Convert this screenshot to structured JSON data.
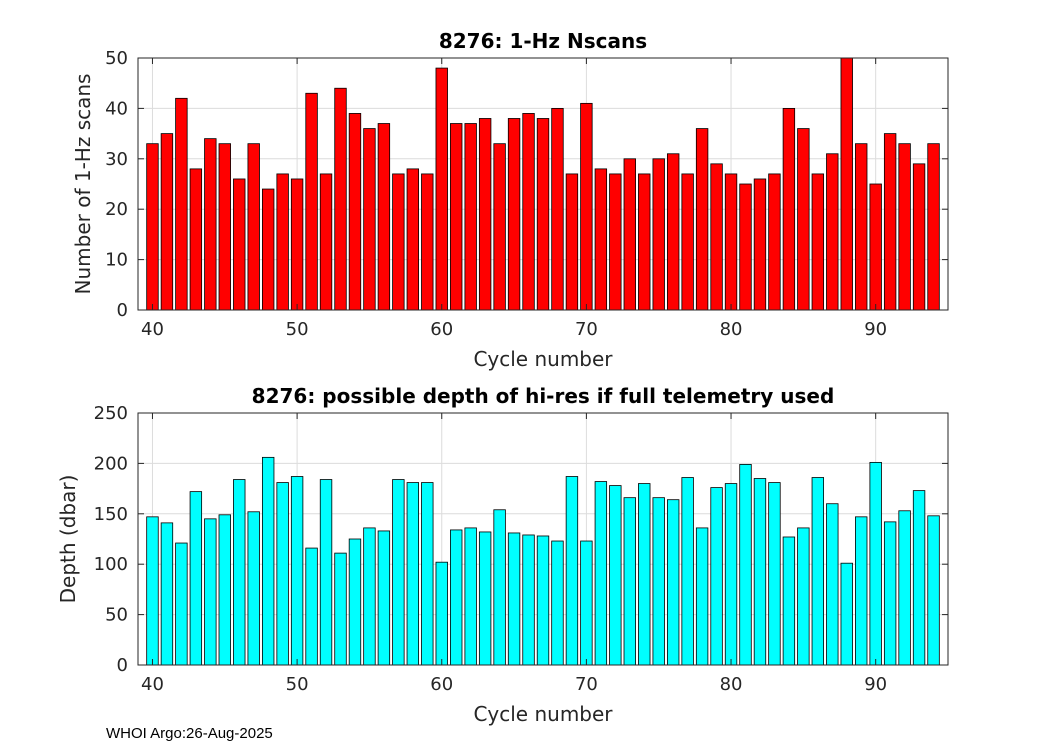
{
  "chart_data": [
    {
      "type": "bar",
      "title": "8276: 1-Hz Nscans",
      "xlabel": "Cycle number",
      "ylabel": "Number of 1-Hz scans",
      "xlim": [
        39,
        95
      ],
      "ylim": [
        0,
        50
      ],
      "xticks": [
        40,
        50,
        60,
        70,
        80,
        90
      ],
      "yticks": [
        0,
        10,
        20,
        30,
        40,
        50
      ],
      "grid": true,
      "bar_color": "#ff0000",
      "x": [
        40,
        41,
        42,
        43,
        44,
        45,
        46,
        47,
        48,
        49,
        50,
        51,
        52,
        53,
        54,
        55,
        56,
        57,
        58,
        59,
        60,
        61,
        62,
        63,
        64,
        65,
        66,
        67,
        68,
        69,
        70,
        71,
        72,
        73,
        74,
        75,
        76,
        77,
        78,
        79,
        80,
        81,
        82,
        83,
        84,
        85,
        86,
        87,
        88,
        89,
        90,
        91,
        92,
        93,
        94
      ],
      "values": [
        33,
        35,
        42,
        28,
        34,
        33,
        26,
        33,
        24,
        27,
        26,
        43,
        27,
        44,
        39,
        36,
        37,
        27,
        28,
        27,
        48,
        37,
        37,
        38,
        33,
        38,
        39,
        38,
        40,
        27,
        41,
        28,
        27,
        30,
        27,
        30,
        31,
        27,
        36,
        29,
        27,
        25,
        26,
        27,
        40,
        36,
        27,
        31,
        50,
        33,
        25,
        35,
        33,
        29,
        33
      ]
    },
    {
      "type": "bar",
      "title": "8276: possible depth of hi-res if full telemetry used",
      "xlabel": "Cycle number",
      "ylabel": "Depth (dbar)",
      "xlim": [
        39,
        95
      ],
      "ylim": [
        0,
        250
      ],
      "xticks": [
        40,
        50,
        60,
        70,
        80,
        90
      ],
      "yticks": [
        0,
        50,
        100,
        150,
        200,
        250
      ],
      "grid": true,
      "bar_color": "#00ffff",
      "x": [
        40,
        41,
        42,
        43,
        44,
        45,
        46,
        47,
        48,
        49,
        50,
        51,
        52,
        53,
        54,
        55,
        56,
        57,
        58,
        59,
        60,
        61,
        62,
        63,
        64,
        65,
        66,
        67,
        68,
        69,
        70,
        71,
        72,
        73,
        74,
        75,
        76,
        77,
        78,
        79,
        80,
        81,
        82,
        83,
        84,
        85,
        86,
        87,
        88,
        89,
        90,
        91,
        92,
        93,
        94
      ],
      "values": [
        147,
        141,
        121,
        172,
        145,
        149,
        184,
        152,
        206,
        181,
        187,
        116,
        184,
        111,
        125,
        136,
        133,
        184,
        181,
        181,
        102,
        134,
        136,
        132,
        154,
        131,
        129,
        128,
        123,
        187,
        123,
        182,
        178,
        166,
        180,
        166,
        164,
        186,
        136,
        176,
        180,
        199,
        185,
        181,
        127,
        136,
        186,
        160,
        101,
        147,
        201,
        142,
        153,
        173,
        148
      ]
    }
  ],
  "footer": "WHOI Argo:26-Aug-2025"
}
